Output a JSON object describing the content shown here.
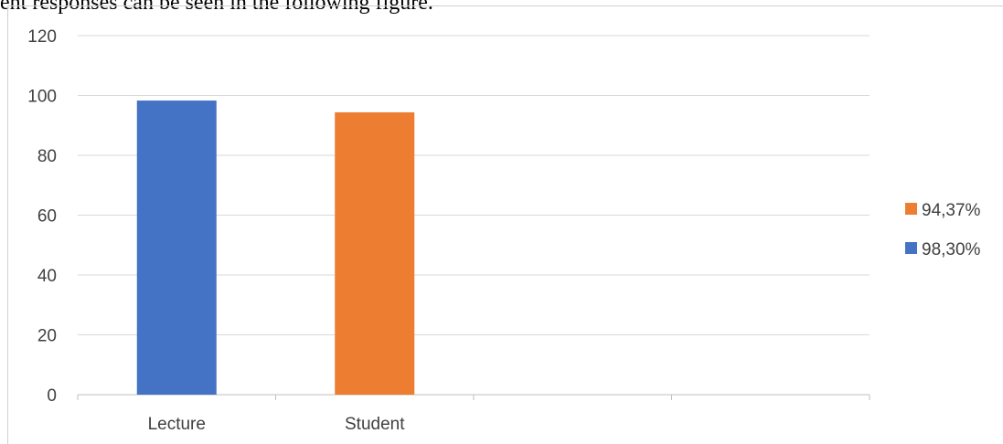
{
  "caption": "ent responses can be seen in the following figure.",
  "chart_data": {
    "type": "bar",
    "categories": [
      "Lecture",
      "Student",
      "",
      ""
    ],
    "series": [
      {
        "name": "98,30%",
        "values": [
          98.3,
          null,
          null,
          null
        ],
        "color": "#4472C4"
      },
      {
        "name": "94,37%",
        "values": [
          null,
          94.37,
          null,
          null
        ],
        "color": "#ED7D31"
      }
    ],
    "ylim": [
      0,
      120
    ],
    "yticks": [
      0,
      20,
      40,
      60,
      80,
      100,
      120
    ],
    "grid": true,
    "legend_position": "right",
    "legend_order": [
      "94,37%",
      "98,30%"
    ]
  }
}
